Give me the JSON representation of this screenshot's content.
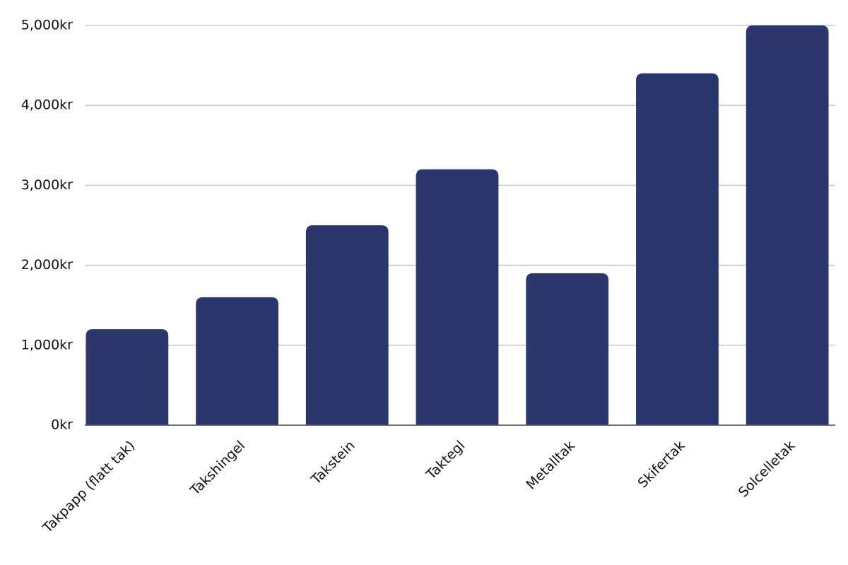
{
  "chart_data": {
    "type": "bar",
    "categories": [
      "Takpapp (flatt tak)",
      "Takshingel",
      "Takstein",
      "Taktegl",
      "Metalltak",
      "Skifertak",
      "Solcelletak"
    ],
    "values": [
      1200,
      1600,
      2500,
      3200,
      1900,
      4400,
      5000
    ],
    "color": "#2b376c",
    "ylim": [
      0,
      5000
    ],
    "yticks": [
      {
        "value": 0,
        "label": "0kr"
      },
      {
        "value": 1000,
        "label": "1,000kr"
      },
      {
        "value": 2000,
        "label": "2,000kr"
      },
      {
        "value": 3000,
        "label": "3,000kr"
      },
      {
        "value": 4000,
        "label": "4,000kr"
      },
      {
        "value": 5000,
        "label": "5,000kr"
      }
    ],
    "grid": true
  }
}
